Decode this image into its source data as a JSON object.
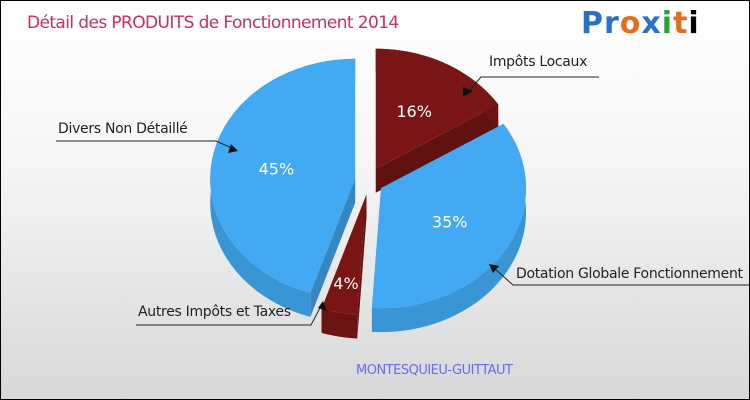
{
  "title": "Détail des PRODUITS de Fonctionnement 2014",
  "logo": "Proxiti",
  "town": "MONTESQUIEU-GUITTAUT",
  "chart_data": {
    "type": "pie",
    "title": "Détail des PRODUITS de Fonctionnement 2014",
    "slices": [
      {
        "label": "Impôts Locaux",
        "value": 16,
        "pct_label": "16%",
        "color": "#7a1515"
      },
      {
        "label": "Dotation Globale Fonctionnement",
        "value": 35,
        "pct_label": "35%",
        "color": "#42a9f2"
      },
      {
        "label": "Autres Impôts et Taxes",
        "value": 4,
        "pct_label": "4%",
        "color": "#7a1515"
      },
      {
        "label": "Divers Non Détaillé",
        "value": 45,
        "pct_label": "45%",
        "color": "#42a9f2"
      }
    ]
  }
}
